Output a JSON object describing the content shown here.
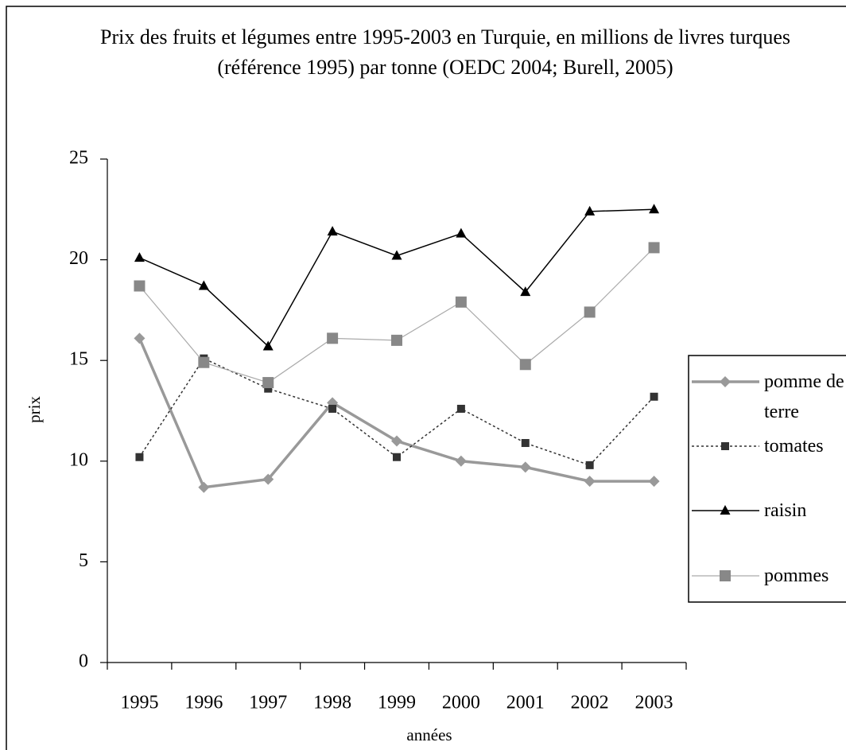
{
  "chart_data": {
    "type": "line",
    "title": "Prix des fruits et légumes entre 1995-2003 en Turquie, en millions de livres turques (référence 1995) par tonne (OEDC 2004; Burell, 2005)",
    "x_label": "années",
    "y_label": "prix",
    "categories": [
      "1995",
      "1996",
      "1997",
      "1998",
      "1999",
      "2000",
      "2001",
      "2002",
      "2003"
    ],
    "ylim": [
      0,
      25
    ],
    "yticks": [
      0,
      5,
      10,
      15,
      20,
      25
    ],
    "legend": "right",
    "series": [
      {
        "name": "pomme de terre",
        "color": "#999999",
        "marker": "diamond",
        "values": [
          16.1,
          8.7,
          9.1,
          12.9,
          11.0,
          10.0,
          9.7,
          9.0,
          9.0
        ]
      },
      {
        "name": "tomates",
        "color": "#333333",
        "marker": "square",
        "dash": "dotted",
        "values": [
          10.2,
          15.1,
          13.6,
          12.6,
          10.2,
          12.6,
          10.9,
          9.8,
          13.2
        ]
      },
      {
        "name": "raisin",
        "color": "#000000",
        "marker": "triangle",
        "values": [
          20.1,
          18.7,
          15.7,
          21.4,
          20.2,
          21.3,
          18.4,
          22.4,
          22.5
        ]
      },
      {
        "name": "pommes",
        "color": "#aaaaaa",
        "marker": "square",
        "values": [
          18.7,
          14.9,
          13.9,
          16.1,
          16.0,
          17.9,
          14.8,
          17.4,
          20.6
        ]
      }
    ]
  }
}
